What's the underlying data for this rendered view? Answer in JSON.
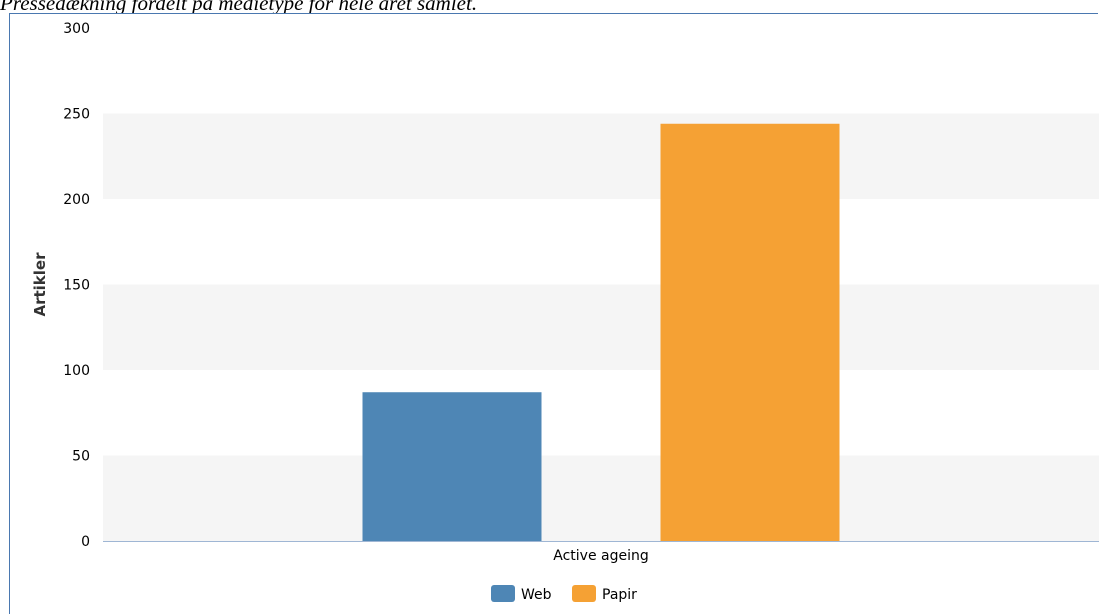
{
  "document": {
    "caption": "Pressedækning fordelt på medietype for hele året samlet."
  },
  "chart_data": {
    "type": "bar",
    "categories": [
      "Active ageing"
    ],
    "series": [
      {
        "name": "Web",
        "values": [
          87
        ],
        "color": "#4e86b5"
      },
      {
        "name": "Papir",
        "values": [
          244
        ],
        "color": "#f5a134"
      }
    ],
    "ylabel": "Artikler",
    "xlabel": "",
    "ylim": [
      0,
      300
    ],
    "yticks": [
      0,
      50,
      100,
      150,
      200,
      250,
      300
    ],
    "grid": "alternating bands",
    "band_color": "#f5f5f5",
    "axis_color": "#9fb6d4",
    "legend": "bottom-center"
  }
}
